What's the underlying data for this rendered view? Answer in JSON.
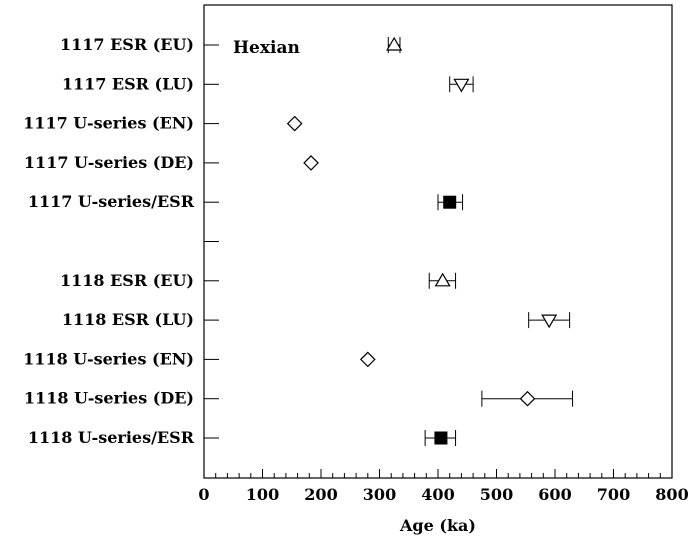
{
  "chart_data": {
    "type": "scatter",
    "title": "",
    "annotation": "Hexian",
    "xlabel": "Age (ka)",
    "ylabel": "",
    "xlim": [
      0,
      800
    ],
    "x_ticks": [
      "0",
      "100",
      "200",
      "300",
      "400",
      "500",
      "600",
      "700",
      "800"
    ],
    "grid": false,
    "rows": [
      {
        "label": "1117 ESR (EU)",
        "value": 325,
        "error": [
          315,
          335
        ],
        "marker": "triangle-up-open"
      },
      {
        "label": "1117 ESR (LU)",
        "value": 440,
        "error": [
          420,
          460
        ],
        "marker": "triangle-down-open"
      },
      {
        "label": "1117 U-series (EN)",
        "value": 155,
        "error": null,
        "marker": "diamond-open"
      },
      {
        "label": "1117 U-series (DE)",
        "value": 183,
        "error": null,
        "marker": "diamond-open"
      },
      {
        "label": "1117 U-series/ESR",
        "value": 420,
        "error": [
          400,
          442
        ],
        "marker": "square-filled"
      },
      {
        "label": "",
        "value": null,
        "error": null,
        "marker": "none"
      },
      {
        "label": "1118 ESR (EU)",
        "value": 408,
        "error": [
          385,
          430
        ],
        "marker": "triangle-up-open"
      },
      {
        "label": "1118 ESR (LU)",
        "value": 590,
        "error": [
          555,
          625
        ],
        "marker": "triangle-down-open"
      },
      {
        "label": "1118 U-series (EN)",
        "value": 280,
        "error": null,
        "marker": "diamond-open"
      },
      {
        "label": "1118 U-series (DE)",
        "value": 553,
        "error": [
          475,
          630
        ],
        "marker": "diamond-open"
      },
      {
        "label": "1118 U-series/ESR",
        "value": 405,
        "error": [
          378,
          430
        ],
        "marker": "square-filled"
      }
    ]
  }
}
